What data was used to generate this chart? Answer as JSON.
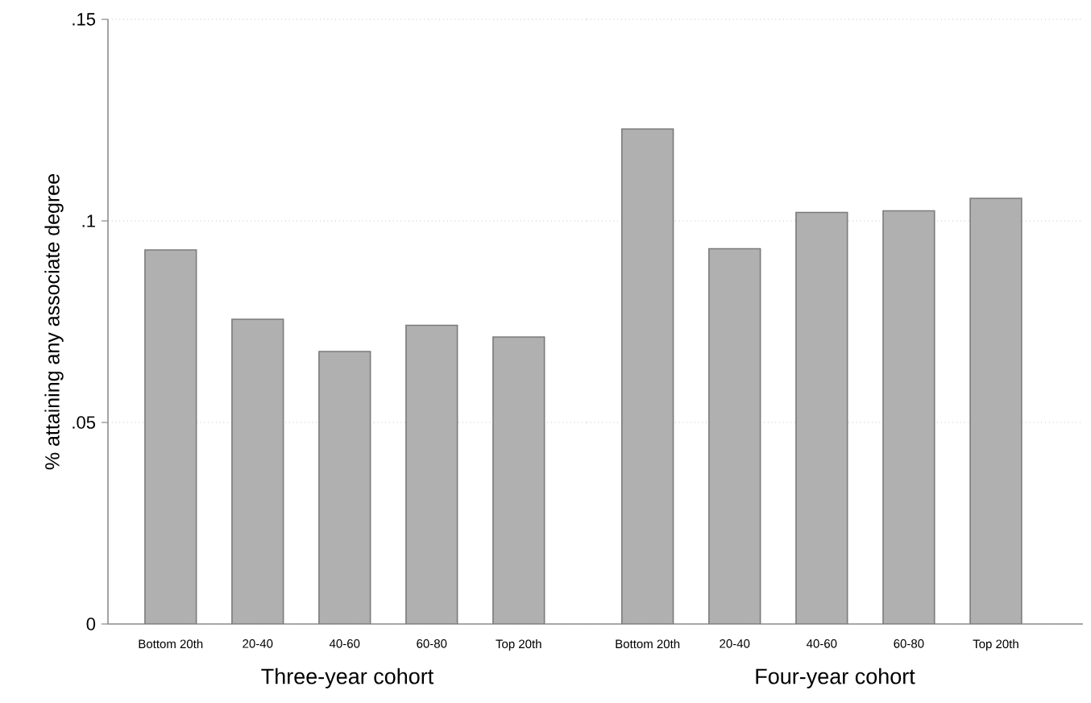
{
  "chart_data": [
    {
      "type": "bar",
      "categories": [
        "Bottom 20th",
        "20-40",
        "40-60",
        "60-80",
        "Top 20th"
      ],
      "values": [
        0.0928,
        0.0756,
        0.0676,
        0.0741,
        0.0712
      ],
      "color": "#b0b0b0",
      "xlabel": "Three-year cohort",
      "ylabel": "% attaining any associate degree",
      "ylim": [
        0,
        0.15
      ],
      "yticks": [
        0,
        {
          "value": 0.05,
          "label": ".05"
        },
        {
          "value": 0.1,
          "label": ".1"
        },
        {
          "value": 0.15,
          "label": ".15"
        }
      ],
      "grid": "y"
    },
    {
      "type": "bar",
      "categories": [
        "Bottom 20th",
        "20-40",
        "40-60",
        "60-80",
        "Top 20th"
      ],
      "values": [
        0.1228,
        0.0931,
        0.1021,
        0.1025,
        0.1056
      ],
      "color": "#b0b0b0",
      "xlabel": "Four-year cohort",
      "ylim": [
        0,
        0.15
      ],
      "yticks": [
        0,
        0.05,
        0.1,
        0.15
      ],
      "grid": "y",
      "tick_labels": "x"
    }
  ]
}
